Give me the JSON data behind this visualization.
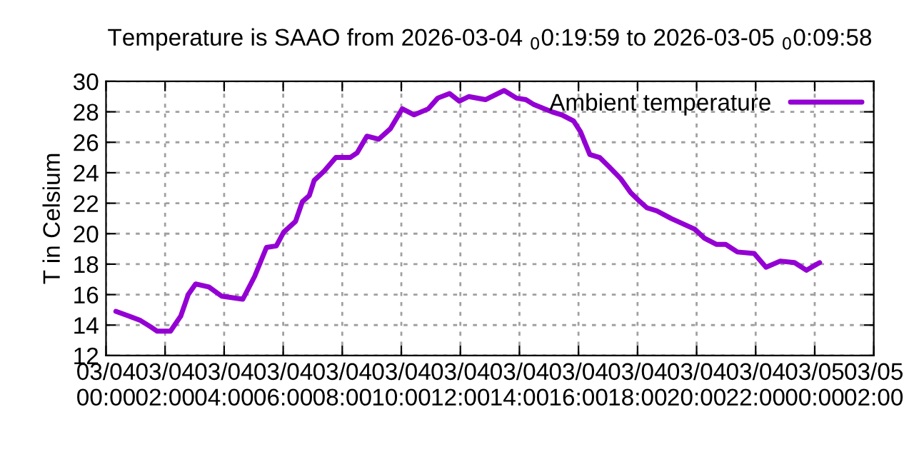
{
  "chart_data": {
    "type": "line",
    "title": "Temperature is SAAO from 2026-03-04 $_{0}$0:19:59 to 2026-03-05 $_{0}$0:09:58",
    "ylabel": "T in Celsium",
    "x": [
      "2026-03-04T00:20",
      "2026-03-04T00:46",
      "2026-03-04T01:10",
      "2026-03-04T01:30",
      "2026-03-04T01:44",
      "2026-03-04T02:11",
      "2026-03-04T02:32",
      "2026-03-04T02:47",
      "2026-03-04T03:02",
      "2026-03-04T03:29",
      "2026-03-04T03:55",
      "2026-03-04T04:38",
      "2026-03-04T05:02",
      "2026-03-04T05:26",
      "2026-03-04T05:46",
      "2026-03-04T06:01",
      "2026-03-04T06:25",
      "2026-03-04T06:39",
      "2026-03-04T06:53",
      "2026-03-04T07:03",
      "2026-03-04T07:23",
      "2026-03-04T07:47",
      "2026-03-04T08:16",
      "2026-03-04T08:30",
      "2026-03-04T08:50",
      "2026-03-04T09:14",
      "2026-03-04T09:38",
      "2026-03-04T10:02",
      "2026-03-04T10:26",
      "2026-03-04T10:55",
      "2026-03-04T11:14",
      "2026-03-04T11:38",
      "2026-03-04T11:58",
      "2026-03-04T12:17",
      "2026-03-04T12:51",
      "2026-03-04T13:29",
      "2026-03-04T13:54",
      "2026-03-04T14:13",
      "2026-03-04T14:28",
      "2026-03-04T15:06",
      "2026-03-04T15:26",
      "2026-03-04T15:50",
      "2026-03-04T16:04",
      "2026-03-04T16:23",
      "2026-03-04T16:43",
      "2026-03-04T17:02",
      "2026-03-04T17:26",
      "2026-03-04T17:46",
      "2026-03-04T18:05",
      "2026-03-04T18:19",
      "2026-03-04T18:39",
      "2026-03-04T19:08",
      "2026-03-04T19:56",
      "2026-03-04T20:16",
      "2026-03-04T20:40",
      "2026-03-04T20:59",
      "2026-03-04T21:23",
      "2026-03-04T21:57",
      "2026-03-04T22:21",
      "2026-03-04T22:50",
      "2026-03-04T23:19",
      "2026-03-04T23:43",
      "2026-03-05T00:10"
    ],
    "series": [
      {
        "name": "Ambient temperature",
        "color": "#9400d3",
        "values": [
          14.9,
          14.6,
          14.3,
          13.9,
          13.6,
          13.6,
          14.6,
          16.0,
          16.7,
          16.5,
          15.9,
          15.7,
          17.2,
          19.1,
          19.2,
          20.1,
          20.8,
          22.1,
          22.5,
          23.5,
          24.1,
          25.0,
          25.0,
          25.3,
          26.4,
          26.2,
          26.9,
          28.2,
          27.8,
          28.2,
          28.9,
          29.2,
          28.7,
          29.0,
          28.8,
          29.4,
          28.9,
          28.8,
          28.5,
          28.0,
          27.8,
          27.4,
          26.7,
          25.2,
          25.0,
          24.4,
          23.6,
          22.7,
          22.1,
          21.7,
          21.5,
          21.0,
          20.3,
          19.7,
          19.3,
          19.3,
          18.8,
          18.7,
          17.8,
          18.2,
          18.1,
          17.6,
          18.1
        ]
      }
    ],
    "xlim": [
      "2026-03-04T00:00",
      "2026-03-05T02:00"
    ],
    "xticks": [
      {
        "value": "2026-03-04T00:00",
        "label": "03/04\n00:00"
      },
      {
        "value": "2026-03-04T02:00",
        "label": "03/04\n02:00"
      },
      {
        "value": "2026-03-04T04:00",
        "label": "03/04\n04:00"
      },
      {
        "value": "2026-03-04T06:00",
        "label": "03/04\n06:00"
      },
      {
        "value": "2026-03-04T08:00",
        "label": "03/04\n08:00"
      },
      {
        "value": "2026-03-04T10:00",
        "label": "03/04\n10:00"
      },
      {
        "value": "2026-03-04T12:00",
        "label": "03/04\n12:00"
      },
      {
        "value": "2026-03-04T14:00",
        "label": "03/04\n14:00"
      },
      {
        "value": "2026-03-04T16:00",
        "label": "03/04\n16:00"
      },
      {
        "value": "2026-03-04T18:00",
        "label": "03/04\n18:00"
      },
      {
        "value": "2026-03-04T20:00",
        "label": "03/04\n20:00"
      },
      {
        "value": "2026-03-04T22:00",
        "label": "03/04\n22:00"
      },
      {
        "value": "2026-03-05T00:00",
        "label": "03/05\n00:00"
      },
      {
        "value": "2026-03-05T02:00",
        "label": "03/05\n02:00"
      }
    ],
    "ylim": [
      12,
      30
    ],
    "yticks": [
      12,
      14,
      16,
      18,
      20,
      22,
      24,
      26,
      28,
      30
    ],
    "grid": true,
    "legend": "top right",
    "line_style": "solid"
  }
}
